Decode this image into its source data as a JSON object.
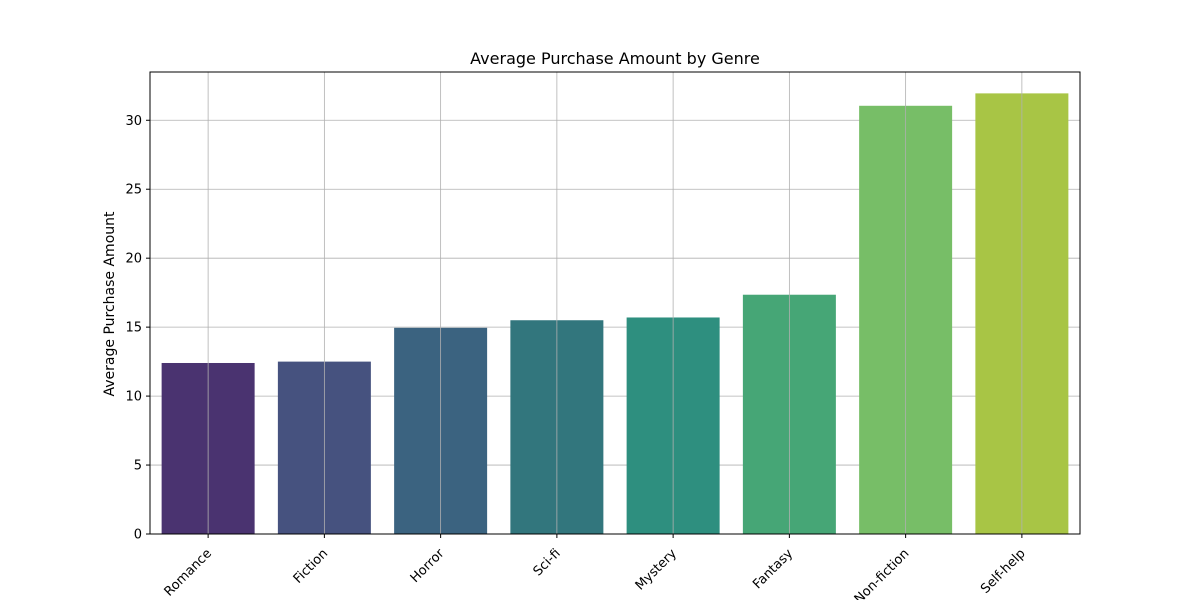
{
  "chart_data": {
    "type": "bar",
    "title": "Average Purchase Amount by Genre",
    "xlabel": "",
    "ylabel": "Average Purchase Amount",
    "categories": [
      "Romance",
      "Fiction",
      "Horror",
      "Sci-fi",
      "Mystery",
      "Fantasy",
      "Non-fiction",
      "Self-help"
    ],
    "values": [
      12.4,
      12.5,
      14.95,
      15.5,
      15.7,
      17.35,
      31.05,
      31.95
    ],
    "colors": [
      "#4a3370",
      "#46527f",
      "#3b6380",
      "#32767d",
      "#2e8f7f",
      "#46a676",
      "#77be67",
      "#a8c545"
    ],
    "ylim": [
      0,
      33.5
    ],
    "yticks": [
      0,
      5,
      10,
      15,
      20,
      25,
      30
    ],
    "grid": true,
    "legend": "none"
  }
}
